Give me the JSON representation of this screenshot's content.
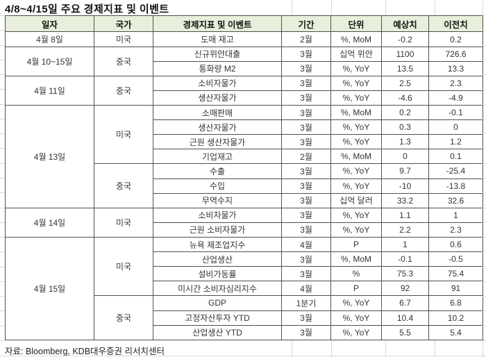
{
  "title": "4/8~4/15일 주요 경제지표 및 이벤트",
  "footer": "자료: Bloomberg, KDB대우증권 리서치센터",
  "colors": {
    "header_bg": "#e7efda",
    "table_border": "#4f4f4f",
    "gridline": "#d9d9d9"
  },
  "table": {
    "columns": [
      "일자",
      "국가",
      "경제지표 및 이벤트",
      "기간",
      "단위",
      "예상치",
      "이전치"
    ],
    "groups": [
      {
        "date": "4월 8일",
        "countries": [
          {
            "name": "미국",
            "items": [
              {
                "name": "도매 재고",
                "period": "2월",
                "unit": "%, MoM",
                "forecast": "-0.2",
                "previous": "0.2"
              }
            ]
          }
        ]
      },
      {
        "date": "4월 10~15일",
        "countries": [
          {
            "name": "중국",
            "items": [
              {
                "name": "신규위안대출",
                "period": "3월",
                "unit": "십억 위안",
                "forecast": "1100",
                "previous": "726.6"
              },
              {
                "name": "통화량 M2",
                "period": "3월",
                "unit": "%, YoY",
                "forecast": "13.5",
                "previous": "13.3"
              }
            ]
          }
        ]
      },
      {
        "date": "4월 11일",
        "countries": [
          {
            "name": "중국",
            "items": [
              {
                "name": "소비자물가",
                "period": "3월",
                "unit": "%, YoY",
                "forecast": "2.5",
                "previous": "2.3"
              },
              {
                "name": "생산자물가",
                "period": "3월",
                "unit": "%, YoY",
                "forecast": "-4.6",
                "previous": "-4.9"
              }
            ]
          }
        ]
      },
      {
        "date": "4월 13일",
        "countries": [
          {
            "name": "미국",
            "items": [
              {
                "name": "소매판매",
                "period": "3월",
                "unit": "%, MoM",
                "forecast": "0.2",
                "previous": "-0.1"
              },
              {
                "name": "생산자물가",
                "period": "3월",
                "unit": "%, YoY",
                "forecast": "0.3",
                "previous": "0"
              },
              {
                "name": "근원 생산자물가",
                "period": "3월",
                "unit": "%, YoY",
                "forecast": "1.3",
                "previous": "1.2"
              },
              {
                "name": "기업재고",
                "period": "2월",
                "unit": "%, MoM",
                "forecast": "0",
                "previous": "0.1"
              }
            ]
          },
          {
            "name": "중국",
            "items": [
              {
                "name": "수출",
                "period": "3월",
                "unit": "%, YoY",
                "forecast": "9.7",
                "previous": "-25.4"
              },
              {
                "name": "수입",
                "period": "3월",
                "unit": "%, YoY",
                "forecast": "-10",
                "previous": "-13.8"
              },
              {
                "name": "무역수지",
                "period": "3월",
                "unit": "십억 달러",
                "forecast": "33.2",
                "previous": "32.6"
              }
            ]
          }
        ]
      },
      {
        "date": "4월 14일",
        "countries": [
          {
            "name": "미국",
            "items": [
              {
                "name": "소비자물가",
                "period": "3월",
                "unit": "%, YoY",
                "forecast": "1.1",
                "previous": "1"
              },
              {
                "name": "근원 소비자물가",
                "period": "3월",
                "unit": "%, YoY",
                "forecast": "2.2",
                "previous": "2.3"
              }
            ]
          }
        ]
      },
      {
        "date": "4월 15일",
        "countries": [
          {
            "name": "미국",
            "items": [
              {
                "name": "뉴욕 제조업지수",
                "period": "4월",
                "unit": "P",
                "forecast": "1",
                "previous": "0.6"
              },
              {
                "name": "산업생산",
                "period": "3월",
                "unit": "%, MoM",
                "forecast": "-0.1",
                "previous": "-0.5"
              },
              {
                "name": "설비가동률",
                "period": "3월",
                "unit": "%",
                "forecast": "75.3",
                "previous": "75.4"
              },
              {
                "name": "미시간 소비자심리지수",
                "period": "4월",
                "unit": "P",
                "forecast": "92",
                "previous": "91"
              }
            ]
          },
          {
            "name": "중국",
            "items": [
              {
                "name": "GDP",
                "period": "1분기",
                "unit": "%, YoY",
                "forecast": "6.7",
                "previous": "6.8"
              },
              {
                "name": "고정자산투자 YTD",
                "period": "3월",
                "unit": "%, YoY",
                "forecast": "10.4",
                "previous": "10.2"
              },
              {
                "name": "산업생산 YTD",
                "period": "3월",
                "unit": "%, YoY",
                "forecast": "5.5",
                "previous": "5.4"
              }
            ]
          }
        ]
      }
    ]
  }
}
